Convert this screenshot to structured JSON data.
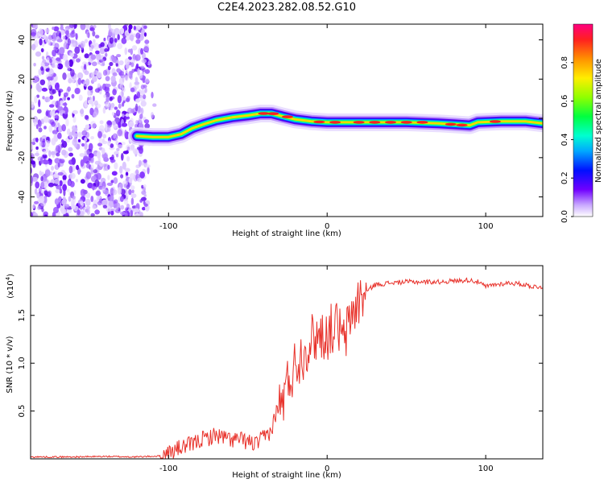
{
  "title": "C2E4.2023.282.08.52.G10",
  "chart_data": [
    {
      "type": "heatmap",
      "xlabel": "Height of straight line (km)",
      "ylabel": "Frequency (Hz)",
      "xlim": [
        -187,
        136
      ],
      "ylim": [
        -50,
        48
      ],
      "xticks": [
        -100,
        0,
        100
      ],
      "xtick_labels": [
        "-100",
        "0",
        "100"
      ],
      "yticks": [
        -40,
        -20,
        0,
        20,
        40
      ],
      "ytick_labels": [
        "-40",
        "-20",
        "0",
        "20",
        "40"
      ],
      "ridge": {
        "x": [
          -120,
          -110,
          -100,
          -92,
          -85,
          -78,
          -70,
          -60,
          -50,
          -42,
          -35,
          -28,
          -20,
          -10,
          0,
          10,
          30,
          50,
          70,
          80,
          90,
          95,
          110,
          125,
          136
        ],
        "y": [
          -9,
          -9.5,
          -9.5,
          -8,
          -5,
          -3,
          -1,
          0.5,
          1.5,
          2.5,
          2.5,
          1,
          -0.5,
          -1.5,
          -2,
          -2,
          -2,
          -2,
          -2.5,
          -3,
          -3.5,
          -2,
          -1.5,
          -1.5,
          -2.5
        ]
      },
      "noise_region_x": [
        -187,
        -113
      ],
      "colorbar": {
        "label": "Normalized spectral amplitude",
        "range": [
          0,
          1
        ],
        "ticks": [
          0.0,
          0.2,
          0.4,
          0.6,
          0.8
        ],
        "tick_labels": [
          "0.0",
          "0.2",
          "0.4",
          "0.6",
          "0.8"
        ]
      },
      "grid": false
    },
    {
      "type": "line",
      "xlabel": "Height of straight line (km)",
      "ylabel": "SNR (10 * v/v)",
      "multiplier_label": "(x10",
      "multiplier_exp": "4",
      "xlim": [
        -187,
        136
      ],
      "ylim": [
        0,
        2.02
      ],
      "xticks": [
        -100,
        0,
        100
      ],
      "xtick_labels": [
        "-100",
        "0",
        "100"
      ],
      "yticks": [
        0.5,
        1.0,
        1.5
      ],
      "ytick_labels": [
        "0.5",
        "1.0",
        "1.5"
      ],
      "series": [
        {
          "color": "#e8312a",
          "x": [
            -187,
            -160,
            -140,
            -120,
            -105,
            -100,
            -95,
            -90,
            -85,
            -80,
            -75,
            -70,
            -65,
            -60,
            -55,
            -50,
            -45,
            -40,
            -35,
            -32,
            -28,
            -25,
            -22,
            -20,
            -15,
            -12,
            -10,
            -5,
            0,
            5,
            8,
            10,
            12,
            15,
            20,
            25,
            30,
            40,
            50,
            60,
            70,
            80,
            90,
            95,
            100,
            105,
            110,
            115,
            120,
            125,
            130,
            136
          ],
          "y": [
            0.02,
            0.02,
            0.025,
            0.02,
            0.03,
            0.06,
            0.1,
            0.13,
            0.15,
            0.2,
            0.22,
            0.25,
            0.22,
            0.2,
            0.2,
            0.18,
            0.15,
            0.22,
            0.3,
            0.5,
            0.6,
            0.8,
            0.9,
            1.0,
            1.1,
            1.2,
            1.25,
            1.3,
            1.3,
            1.4,
            1.35,
            1.2,
            1.3,
            1.5,
            1.65,
            1.75,
            1.82,
            1.84,
            1.85,
            1.85,
            1.85,
            1.86,
            1.87,
            1.85,
            1.8,
            1.82,
            1.83,
            1.84,
            1.83,
            1.82,
            1.8,
            1.8
          ]
        }
      ],
      "grid": false
    }
  ]
}
